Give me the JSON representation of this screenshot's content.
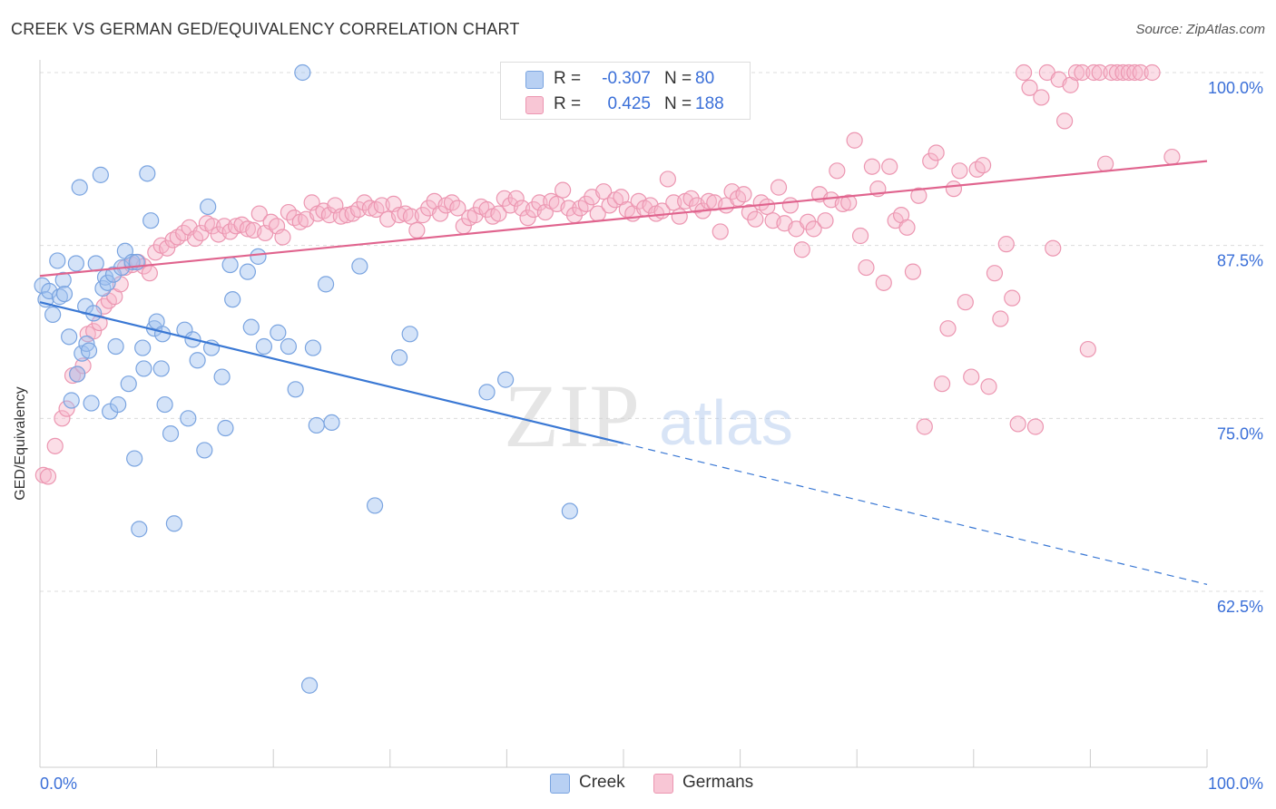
{
  "title": "CREEK VS GERMAN GED/EQUIVALENCY CORRELATION CHART",
  "source": "Source: ZipAtlas.com",
  "watermark": {
    "zip": "ZIP",
    "atlas": "atlas"
  },
  "legend": {
    "r_label": "R =",
    "n_label": "N =",
    "rows": [
      {
        "swatch_fill": "#b8d0f3",
        "swatch_stroke": "#7aa4e0",
        "r": "-0.307",
        "n": "80"
      },
      {
        "swatch_fill": "#f8c6d5",
        "swatch_stroke": "#ec96b1",
        "r": "0.425",
        "n": "188"
      }
    ]
  },
  "bottom_legend": [
    {
      "label": "Creek",
      "fill": "#b8d0f3",
      "stroke": "#7aa4e0"
    },
    {
      "label": "Germans",
      "fill": "#f8c6d5",
      "stroke": "#ec96b1"
    }
  ],
  "chart_data": {
    "type": "scatter",
    "title": "CREEK VS GERMAN GED/EQUIVALENCY CORRELATION CHART",
    "xlabel": "",
    "ylabel": "GED/Equivalency",
    "xlim": [
      0,
      100
    ],
    "ylim": [
      51.5,
      101.5
    ],
    "x_tick_labels": [
      "0.0%",
      "100.0%"
    ],
    "y_ticks": [
      62.5,
      75.0,
      87.5,
      100.0
    ],
    "y_tick_labels": [
      "62.5%",
      "75.0%",
      "87.5%",
      "100.0%"
    ],
    "grid": "horizontal dashed",
    "legend_position": "top-center",
    "series": [
      {
        "name": "Creek",
        "color": "#3a78d4",
        "point_fill": "rgba(160,194,240,0.45)",
        "point_stroke": "#7aa4e0",
        "trend": {
          "x0": 0,
          "y0": 83.4,
          "x1": 50,
          "y1": 73.2,
          "dashed_to_x": 100,
          "dashed_to_y": 63.0
        },
        "points": [
          [
            0.2,
            84.6
          ],
          [
            0.5,
            83.6
          ],
          [
            0.8,
            84.2
          ],
          [
            1.1,
            82.5
          ],
          [
            1.5,
            86.4
          ],
          [
            1.7,
            83.8
          ],
          [
            2.0,
            85.0
          ],
          [
            2.1,
            84.0
          ],
          [
            2.5,
            80.9
          ],
          [
            2.7,
            76.3
          ],
          [
            3.1,
            86.2
          ],
          [
            3.2,
            78.2
          ],
          [
            3.4,
            91.7
          ],
          [
            3.6,
            79.7
          ],
          [
            3.9,
            83.1
          ],
          [
            4.0,
            80.4
          ],
          [
            4.2,
            79.9
          ],
          [
            4.4,
            76.1
          ],
          [
            4.6,
            82.6
          ],
          [
            4.8,
            86.2
          ],
          [
            5.2,
            92.6
          ],
          [
            5.4,
            84.4
          ],
          [
            5.6,
            85.2
          ],
          [
            5.8,
            84.8
          ],
          [
            6.0,
            75.5
          ],
          [
            6.3,
            85.4
          ],
          [
            6.5,
            80.2
          ],
          [
            6.7,
            76.0
          ],
          [
            7.0,
            85.9
          ],
          [
            7.3,
            87.1
          ],
          [
            7.6,
            77.5
          ],
          [
            7.9,
            86.3
          ],
          [
            8.1,
            72.1
          ],
          [
            8.3,
            86.3
          ],
          [
            8.5,
            67.0
          ],
          [
            8.8,
            80.1
          ],
          [
            8.9,
            78.6
          ],
          [
            9.2,
            92.7
          ],
          [
            9.5,
            89.3
          ],
          [
            9.8,
            81.5
          ],
          [
            10.0,
            82.0
          ],
          [
            10.4,
            78.6
          ],
          [
            10.5,
            81.1
          ],
          [
            10.7,
            76.0
          ],
          [
            11.2,
            73.9
          ],
          [
            11.5,
            67.4
          ],
          [
            12.4,
            81.4
          ],
          [
            12.7,
            75.0
          ],
          [
            13.1,
            80.7
          ],
          [
            13.5,
            79.2
          ],
          [
            14.1,
            72.7
          ],
          [
            14.4,
            90.3
          ],
          [
            14.7,
            80.1
          ],
          [
            15.6,
            78.0
          ],
          [
            15.9,
            74.3
          ],
          [
            16.3,
            86.1
          ],
          [
            16.5,
            83.6
          ],
          [
            17.8,
            85.6
          ],
          [
            18.1,
            81.6
          ],
          [
            18.7,
            86.7
          ],
          [
            19.2,
            80.2
          ],
          [
            20.4,
            81.2
          ],
          [
            21.3,
            80.2
          ],
          [
            21.9,
            77.1
          ],
          [
            22.5,
            100.0
          ],
          [
            23.1,
            55.7
          ],
          [
            23.4,
            80.1
          ],
          [
            23.7,
            74.5
          ],
          [
            24.5,
            84.7
          ],
          [
            25.0,
            74.7
          ],
          [
            27.4,
            86.0
          ],
          [
            28.7,
            68.7
          ],
          [
            30.8,
            79.4
          ],
          [
            31.7,
            81.1
          ],
          [
            38.3,
            76.9
          ],
          [
            39.9,
            77.8
          ],
          [
            45.4,
            68.3
          ]
        ]
      },
      {
        "name": "Germans",
        "color": "#e0648e",
        "point_fill": "rgba(246,182,202,0.45)",
        "point_stroke": "#ec96b1",
        "trend": {
          "x0": 0,
          "y0": 85.3,
          "x1": 100,
          "y1": 93.6
        },
        "points": [
          [
            0.3,
            70.9
          ],
          [
            0.7,
            70.8
          ],
          [
            1.3,
            73.0
          ],
          [
            1.9,
            75.0
          ],
          [
            2.3,
            75.7
          ],
          [
            2.8,
            78.1
          ],
          [
            3.2,
            78.2
          ],
          [
            3.7,
            78.8
          ],
          [
            4.1,
            81.1
          ],
          [
            4.6,
            81.3
          ],
          [
            5.1,
            81.9
          ],
          [
            5.5,
            83.1
          ],
          [
            5.9,
            83.5
          ],
          [
            6.4,
            83.8
          ],
          [
            6.9,
            84.7
          ],
          [
            7.3,
            85.9
          ],
          [
            7.9,
            86.1
          ],
          [
            8.4,
            86.3
          ],
          [
            8.9,
            86.0
          ],
          [
            9.4,
            85.5
          ],
          [
            9.9,
            87.0
          ],
          [
            10.4,
            87.5
          ],
          [
            10.9,
            87.3
          ],
          [
            11.4,
            87.9
          ],
          [
            11.8,
            88.1
          ],
          [
            12.3,
            88.4
          ],
          [
            12.8,
            88.8
          ],
          [
            13.3,
            88.0
          ],
          [
            13.8,
            88.4
          ],
          [
            14.3,
            89.1
          ],
          [
            14.8,
            88.9
          ],
          [
            15.3,
            88.3
          ],
          [
            15.8,
            88.9
          ],
          [
            16.3,
            88.5
          ],
          [
            16.8,
            88.9
          ],
          [
            17.3,
            89.0
          ],
          [
            17.8,
            88.7
          ],
          [
            18.3,
            88.6
          ],
          [
            18.8,
            89.8
          ],
          [
            19.3,
            88.4
          ],
          [
            19.8,
            89.2
          ],
          [
            20.3,
            88.9
          ],
          [
            20.8,
            88.1
          ],
          [
            21.3,
            89.9
          ],
          [
            21.8,
            89.5
          ],
          [
            22.3,
            89.2
          ],
          [
            22.8,
            89.4
          ],
          [
            23.3,
            90.6
          ],
          [
            23.8,
            89.8
          ],
          [
            24.3,
            90.0
          ],
          [
            24.8,
            89.7
          ],
          [
            25.3,
            90.4
          ],
          [
            25.8,
            89.6
          ],
          [
            26.3,
            89.7
          ],
          [
            26.8,
            89.8
          ],
          [
            27.3,
            90.1
          ],
          [
            27.8,
            90.6
          ],
          [
            28.3,
            90.2
          ],
          [
            28.8,
            90.1
          ],
          [
            29.3,
            90.4
          ],
          [
            29.8,
            89.4
          ],
          [
            30.3,
            90.5
          ],
          [
            30.8,
            89.7
          ],
          [
            31.3,
            89.8
          ],
          [
            31.8,
            89.6
          ],
          [
            32.3,
            88.6
          ],
          [
            32.8,
            89.7
          ],
          [
            33.3,
            90.2
          ],
          [
            33.8,
            90.7
          ],
          [
            34.3,
            89.8
          ],
          [
            34.8,
            90.4
          ],
          [
            35.3,
            90.6
          ],
          [
            35.8,
            90.2
          ],
          [
            36.3,
            88.9
          ],
          [
            36.8,
            89.5
          ],
          [
            37.3,
            89.7
          ],
          [
            37.8,
            90.3
          ],
          [
            38.3,
            90.1
          ],
          [
            38.8,
            89.6
          ],
          [
            39.3,
            89.8
          ],
          [
            39.8,
            90.9
          ],
          [
            40.3,
            90.4
          ],
          [
            40.8,
            90.9
          ],
          [
            41.3,
            90.2
          ],
          [
            41.8,
            89.5
          ],
          [
            42.3,
            90.1
          ],
          [
            42.8,
            90.6
          ],
          [
            43.3,
            89.9
          ],
          [
            43.8,
            90.7
          ],
          [
            44.3,
            90.5
          ],
          [
            44.8,
            91.5
          ],
          [
            45.3,
            90.2
          ],
          [
            45.8,
            89.7
          ],
          [
            46.3,
            90.2
          ],
          [
            46.8,
            90.5
          ],
          [
            47.3,
            91.0
          ],
          [
            47.8,
            89.8
          ],
          [
            48.3,
            91.4
          ],
          [
            48.8,
            90.4
          ],
          [
            49.3,
            90.8
          ],
          [
            49.8,
            91.0
          ],
          [
            50.3,
            90.1
          ],
          [
            50.8,
            89.8
          ],
          [
            51.3,
            90.7
          ],
          [
            51.8,
            90.2
          ],
          [
            52.3,
            90.4
          ],
          [
            52.8,
            89.8
          ],
          [
            53.3,
            90.0
          ],
          [
            53.8,
            92.3
          ],
          [
            54.3,
            90.6
          ],
          [
            54.8,
            89.6
          ],
          [
            55.3,
            90.7
          ],
          [
            55.8,
            90.9
          ],
          [
            56.3,
            90.4
          ],
          [
            56.8,
            90.0
          ],
          [
            57.3,
            90.7
          ],
          [
            57.8,
            90.6
          ],
          [
            58.3,
            88.5
          ],
          [
            58.8,
            90.4
          ],
          [
            59.3,
            91.4
          ],
          [
            59.8,
            90.9
          ],
          [
            60.3,
            91.2
          ],
          [
            60.8,
            89.9
          ],
          [
            61.3,
            89.4
          ],
          [
            61.8,
            90.6
          ],
          [
            62.3,
            90.3
          ],
          [
            62.8,
            89.3
          ],
          [
            63.3,
            91.7
          ],
          [
            63.8,
            89.1
          ],
          [
            64.3,
            90.4
          ],
          [
            64.8,
            88.7
          ],
          [
            65.3,
            87.2
          ],
          [
            65.8,
            89.2
          ],
          [
            66.3,
            88.7
          ],
          [
            66.8,
            91.2
          ],
          [
            67.3,
            89.3
          ],
          [
            67.8,
            90.8
          ],
          [
            68.3,
            92.9
          ],
          [
            68.8,
            90.5
          ],
          [
            69.3,
            90.6
          ],
          [
            69.8,
            95.1
          ],
          [
            70.3,
            88.2
          ],
          [
            70.8,
            85.9
          ],
          [
            71.3,
            93.2
          ],
          [
            71.8,
            91.6
          ],
          [
            72.3,
            84.8
          ],
          [
            72.8,
            93.2
          ],
          [
            73.3,
            89.3
          ],
          [
            73.8,
            89.7
          ],
          [
            74.3,
            88.8
          ],
          [
            74.8,
            85.6
          ],
          [
            75.3,
            91.1
          ],
          [
            75.8,
            74.4
          ],
          [
            76.3,
            93.6
          ],
          [
            76.8,
            94.2
          ],
          [
            77.3,
            77.5
          ],
          [
            77.8,
            81.5
          ],
          [
            78.3,
            91.6
          ],
          [
            78.8,
            92.9
          ],
          [
            79.3,
            83.4
          ],
          [
            79.8,
            78.0
          ],
          [
            80.3,
            93.0
          ],
          [
            80.8,
            93.3
          ],
          [
            81.3,
            77.3
          ],
          [
            81.8,
            85.5
          ],
          [
            82.3,
            82.2
          ],
          [
            82.8,
            87.6
          ],
          [
            83.3,
            83.7
          ],
          [
            83.8,
            74.6
          ],
          [
            84.3,
            100.0
          ],
          [
            84.8,
            98.9
          ],
          [
            85.3,
            74.4
          ],
          [
            85.8,
            98.2
          ],
          [
            86.3,
            100.0
          ],
          [
            86.8,
            87.3
          ],
          [
            87.3,
            99.5
          ],
          [
            87.8,
            96.5
          ],
          [
            88.3,
            99.1
          ],
          [
            88.8,
            100.0
          ],
          [
            89.3,
            100.0
          ],
          [
            89.8,
            80.0
          ],
          [
            90.3,
            100.0
          ],
          [
            90.8,
            100.0
          ],
          [
            91.3,
            93.4
          ],
          [
            91.8,
            100.0
          ],
          [
            92.3,
            100.0
          ],
          [
            92.8,
            100.0
          ],
          [
            93.3,
            100.0
          ],
          [
            93.8,
            100.0
          ],
          [
            94.3,
            100.0
          ],
          [
            95.3,
            100.0
          ],
          [
            97.0,
            93.9
          ]
        ]
      }
    ]
  }
}
